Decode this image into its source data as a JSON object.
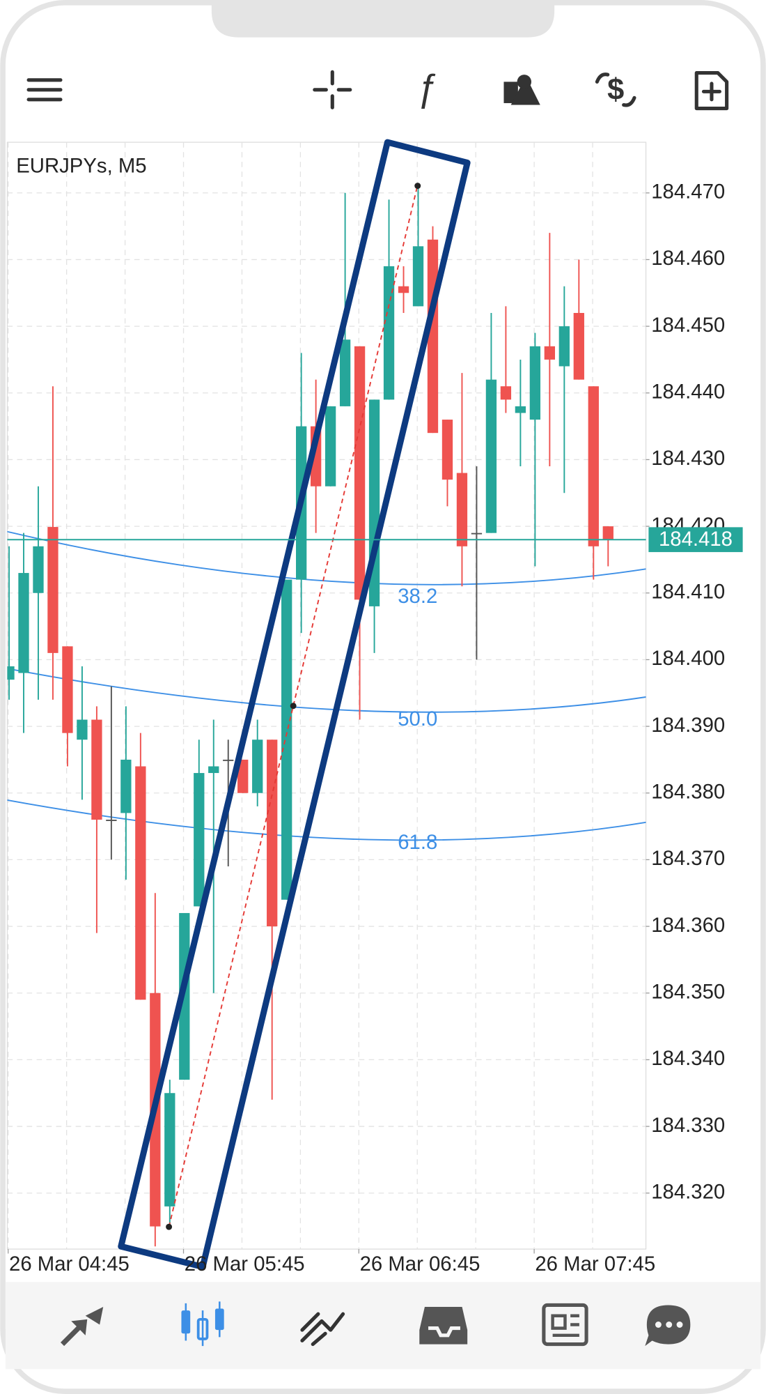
{
  "chart_data": {
    "type": "candlestick",
    "title": "EURJPYs, M5",
    "open": [
      184.397,
      184.398,
      184.41,
      184.4199,
      184.402,
      184.388,
      184.391,
      184.376,
      184.377,
      184.384,
      184.35,
      184.318,
      184.337,
      184.363,
      184.383,
      184.385,
      184.385,
      184.38,
      184.388,
      184.364,
      184.412,
      184.435,
      184.426,
      184.438,
      184.447,
      184.408,
      184.439,
      184.456,
      184.453,
      184.463,
      184.436,
      184.428,
      184.419,
      184.419,
      184.441,
      184.437,
      184.436,
      184.447,
      184.444,
      184.452,
      184.441,
      184.42
    ],
    "high": [
      184.417,
      184.419,
      184.426,
      184.441,
      184.402,
      184.399,
      184.393,
      184.396,
      184.393,
      184.389,
      184.365,
      184.337,
      184.362,
      184.388,
      184.391,
      184.388,
      184.385,
      184.391,
      184.388,
      184.412,
      184.446,
      184.442,
      184.438,
      184.47,
      184.447,
      184.439,
      184.469,
      184.459,
      184.471,
      184.465,
      184.436,
      184.443,
      184.429,
      184.452,
      184.453,
      184.445,
      184.449,
      184.464,
      184.456,
      184.46,
      184.441,
      184.42
    ],
    "low": [
      184.394,
      184.389,
      184.394,
      184.394,
      184.384,
      184.379,
      184.359,
      184.37,
      184.367,
      184.349,
      184.312,
      184.3153,
      184.337,
      184.363,
      184.35,
      184.369,
      184.38,
      184.378,
      184.334,
      184.364,
      184.404,
      184.419,
      184.426,
      184.438,
      184.391,
      184.401,
      184.439,
      184.452,
      184.453,
      184.434,
      184.423,
      184.411,
      184.4,
      184.419,
      184.437,
      184.429,
      184.414,
      184.429,
      184.425,
      184.442,
      184.412,
      184.414
    ],
    "close": [
      184.399,
      184.413,
      184.417,
      184.401,
      184.389,
      184.391,
      184.376,
      184.376,
      184.385,
      184.349,
      184.315,
      184.335,
      184.362,
      184.383,
      184.384,
      184.385,
      184.38,
      184.388,
      184.36,
      184.412,
      184.435,
      184.426,
      184.438,
      184.448,
      184.409,
      184.439,
      184.459,
      184.455,
      184.462,
      184.434,
      184.427,
      184.417,
      184.419,
      184.442,
      184.439,
      184.438,
      184.447,
      184.445,
      184.45,
      184.442,
      184.417,
      184.418
    ],
    "up_color": "#26a69a",
    "down_color": "#ef5350",
    "doji_color": "#555555",
    "last_price": 184.418,
    "ylim": [
      184.3116,
      184.4776
    ],
    "yticks": [
      {
        "value": 184.47,
        "label": "184.470"
      },
      {
        "value": 184.46,
        "label": "184.460"
      },
      {
        "value": 184.45,
        "label": "184.450"
      },
      {
        "value": 184.44,
        "label": "184.440"
      },
      {
        "value": 184.43,
        "label": "184.430"
      },
      {
        "value": 184.42,
        "label": "184.420"
      },
      {
        "value": 184.41,
        "label": "184.410"
      },
      {
        "value": 184.4,
        "label": "184.400"
      },
      {
        "value": 184.39,
        "label": "184.390"
      },
      {
        "value": 184.38,
        "label": "184.380"
      },
      {
        "value": 184.37,
        "label": "184.370"
      },
      {
        "value": 184.36,
        "label": "184.360"
      },
      {
        "value": 184.35,
        "label": "184.350"
      },
      {
        "value": 184.34,
        "label": "184.340"
      },
      {
        "value": 184.33,
        "label": "184.330"
      },
      {
        "value": 184.32,
        "label": "184.320"
      }
    ],
    "x_labels": [
      "26 Mar 04:45",
      "26 Mar 05:45",
      "26 Mar 06:45",
      "26 Mar 07:45"
    ],
    "grid": true,
    "fib_levels": [
      "38.2",
      "50.0",
      "61.8"
    ]
  }
}
